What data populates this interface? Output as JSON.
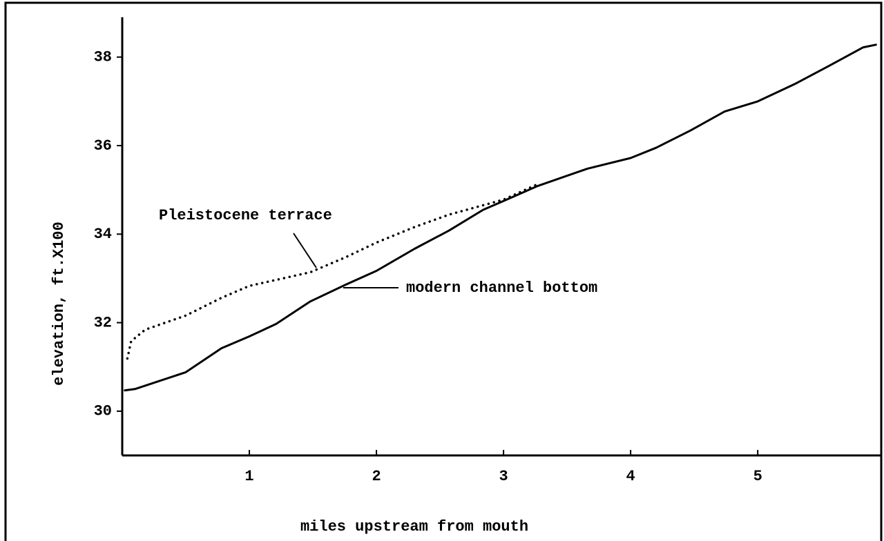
{
  "chart_data": {
    "type": "line",
    "x_label": "miles upstream from mouth",
    "y_label": "elevation, ft.X100",
    "xlim": [
      0,
      5.95
    ],
    "ylim": [
      29,
      38.9
    ],
    "xticks": [
      1,
      2,
      3,
      4,
      5
    ],
    "yticks": [
      30,
      32,
      34,
      36,
      38
    ],
    "series": [
      {
        "name": "modern channel bottom",
        "color": "#000000",
        "style": "solid",
        "x": [
          0.02,
          0.1,
          0.5,
          0.78,
          1.0,
          1.21,
          1.48,
          1.76,
          2.0,
          2.3,
          2.57,
          2.84,
          3.0,
          3.27,
          3.66,
          4.0,
          4.2,
          4.47,
          4.74,
          5.0,
          5.29,
          5.56,
          5.83,
          5.93
        ],
        "values": [
          30.47,
          30.5,
          30.88,
          31.42,
          31.69,
          31.97,
          32.48,
          32.86,
          33.17,
          33.67,
          34.08,
          34.55,
          34.75,
          35.09,
          35.48,
          35.72,
          35.95,
          36.34,
          36.77,
          37.0,
          37.39,
          37.8,
          38.22,
          38.28
        ]
      },
      {
        "name": "Pleistocene terrace",
        "color": "#000000",
        "style": "dotted",
        "x": [
          0.04,
          0.07,
          0.18,
          0.5,
          0.78,
          1.0,
          1.48,
          1.76,
          2.0,
          2.3,
          2.57,
          3.0,
          3.27
        ],
        "values": [
          31.19,
          31.58,
          31.84,
          32.16,
          32.56,
          32.83,
          33.14,
          33.48,
          33.81,
          34.16,
          34.44,
          34.78,
          35.13
        ]
      }
    ]
  }
}
